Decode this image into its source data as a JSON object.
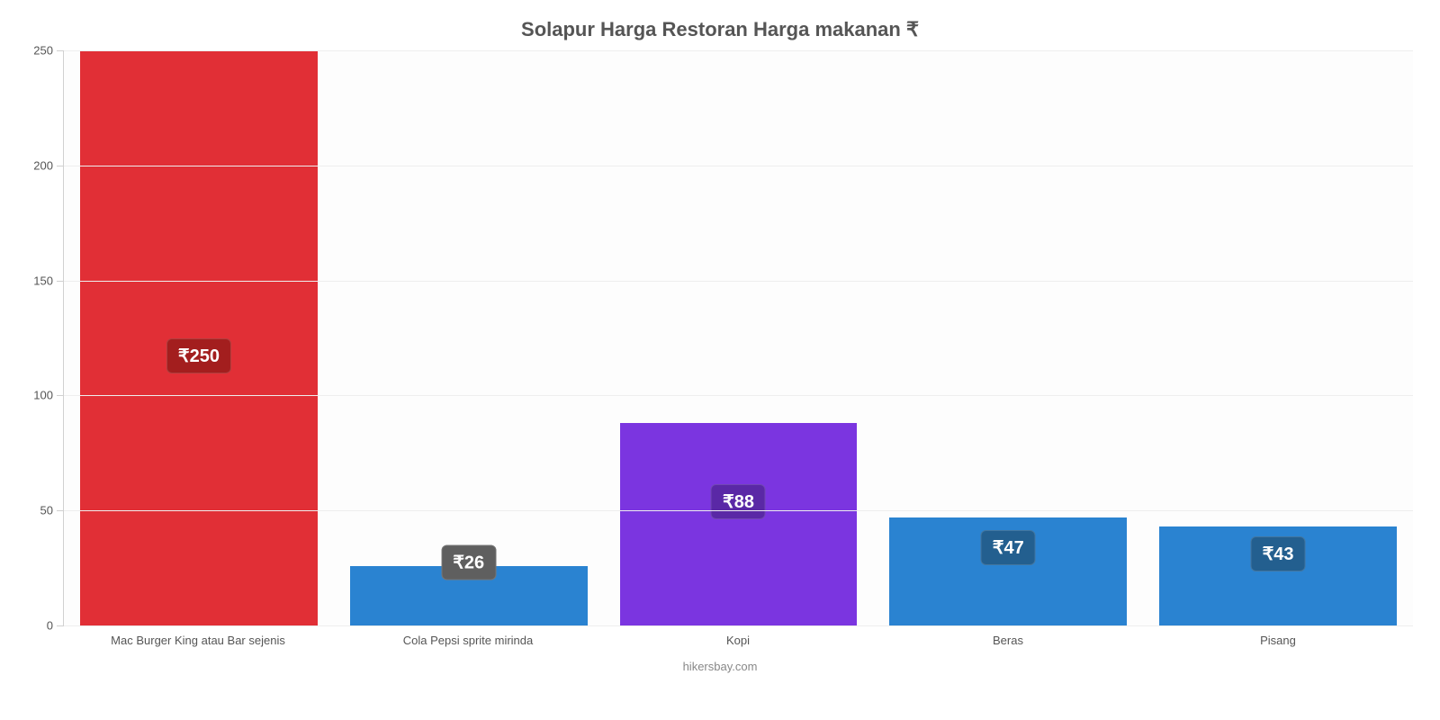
{
  "chart": {
    "type": "bar",
    "title": "Solapur Harga Restoran Harga makanan ₹",
    "title_fontsize": 22,
    "title_color": "#555555",
    "footer": "hikersbay.com",
    "footer_fontsize": 13,
    "footer_color": "#888888",
    "background_color": "#ffffff",
    "plot_background_color": "#fdfdfd",
    "grid_color": "#eeeeee",
    "axis_color": "#d0d0d0",
    "y": {
      "min": 0,
      "max": 250,
      "ticks": [
        0,
        50,
        100,
        150,
        200,
        250
      ],
      "label_fontsize": 13,
      "label_color": "#555555"
    },
    "x": {
      "label_fontsize": 13,
      "label_color": "#555555"
    },
    "bar_width_pct": 88,
    "value_label_fontsize": 20,
    "bars": [
      {
        "category": "Mac Burger King atau Bar sejenis",
        "value": 250,
        "display": "₹250",
        "bar_color": "#e12f36",
        "badge_bg": "#a31e1e",
        "badge_top_pct": 50
      },
      {
        "category": "Cola Pepsi sprite mirinda",
        "value": 26,
        "display": "₹26",
        "bar_color": "#2a83d1",
        "badge_bg": "#5f5f5f",
        "badge_top_pct": -6
      },
      {
        "category": "Kopi",
        "value": 88,
        "display": "₹88",
        "bar_color": "#7b35e0",
        "badge_bg": "#5a28a6",
        "badge_top_pct": 30
      },
      {
        "category": "Beras",
        "value": 47,
        "display": "₹47",
        "bar_color": "#2a83d1",
        "badge_bg": "#235f8f",
        "badge_top_pct": 12
      },
      {
        "category": "Pisang",
        "value": 43,
        "display": "₹43",
        "bar_color": "#2a83d1",
        "badge_bg": "#235f8f",
        "badge_top_pct": 10
      }
    ]
  }
}
